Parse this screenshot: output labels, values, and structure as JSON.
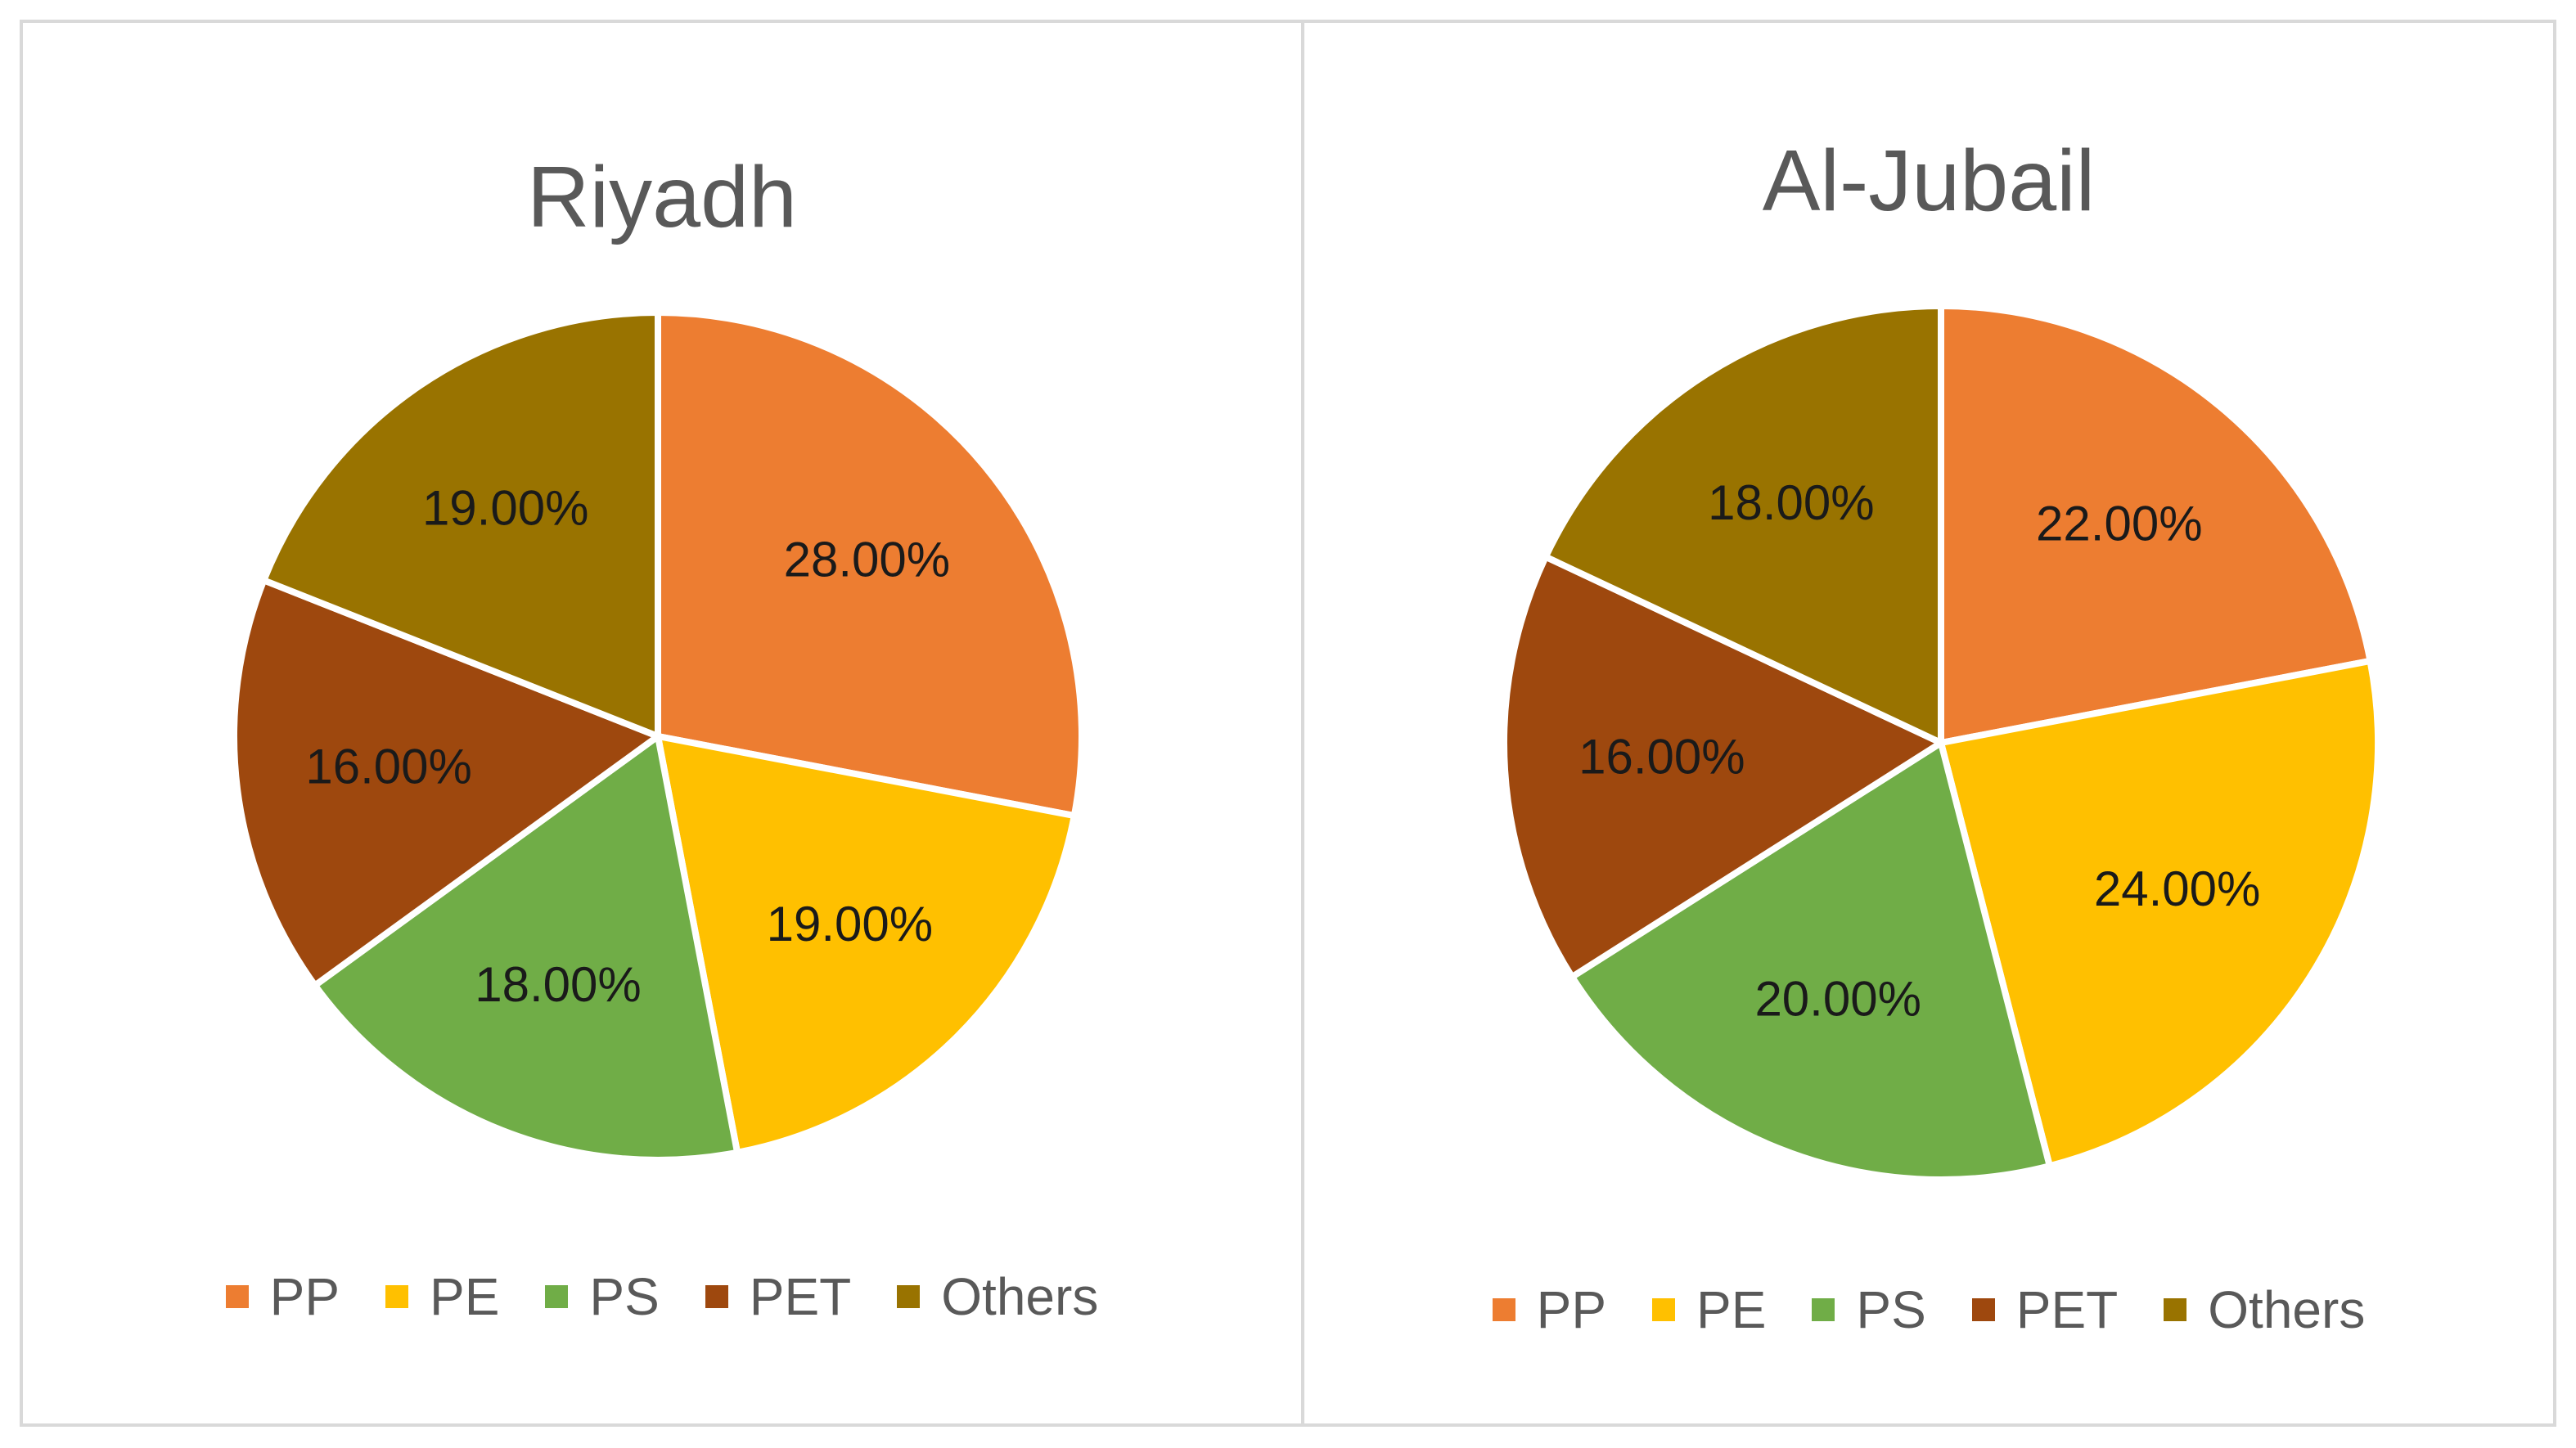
{
  "chart_data": [
    {
      "type": "pie",
      "title": "Riyadh",
      "categories": [
        "PP",
        "PE",
        "PS",
        "PET",
        "Others"
      ],
      "values": [
        28,
        19,
        18,
        16,
        19
      ],
      "labels": [
        "28.00%",
        "19.00%",
        "18.00%",
        "16.00%",
        "19.00%"
      ],
      "colors": [
        "#ED7D31",
        "#FFC000",
        "#70AD47",
        "#9E480E",
        "#997300"
      ],
      "legend": "bottom"
    },
    {
      "type": "pie",
      "title": "Al-Jubail",
      "categories": [
        "PP",
        "PE",
        "PS",
        "PET",
        "Others"
      ],
      "values": [
        22,
        24,
        20,
        16,
        18
      ],
      "labels": [
        "22.00%",
        "24.00%",
        "20.00%",
        "16.00%",
        "18.00%"
      ],
      "colors": [
        "#ED7D31",
        "#FFC000",
        "#70AD47",
        "#9E480E",
        "#997300"
      ],
      "legend": "bottom"
    }
  ]
}
